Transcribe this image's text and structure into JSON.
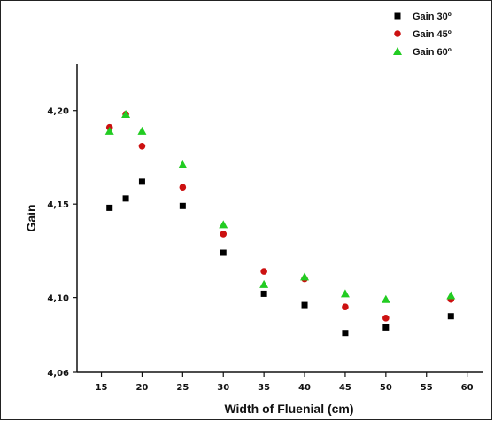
{
  "chart_data": {
    "type": "scatter",
    "xlabel": "Width of Fluenial (cm)",
    "ylabel": "Gain",
    "xlim": [
      12,
      62
    ],
    "ylim": [
      4.06,
      4.225
    ],
    "xticks": [
      15,
      20,
      25,
      30,
      35,
      40,
      45,
      50,
      55,
      60
    ],
    "xtick_labels": [
      "15",
      "20",
      "25",
      "30",
      "35",
      "40",
      "45",
      "50",
      "55",
      "60"
    ],
    "yticks": [
      4.06,
      4.1,
      4.15,
      4.2
    ],
    "ytick_labels": [
      "4,06",
      "4,10",
      "4,15",
      "4,20"
    ],
    "grid": false,
    "legend_position": "top-right",
    "series": [
      {
        "name": "Gain 30º",
        "marker": "square",
        "color": "#000000",
        "points": [
          [
            16,
            4.148
          ],
          [
            18,
            4.153
          ],
          [
            20,
            4.162
          ],
          [
            25,
            4.149
          ],
          [
            30,
            4.124
          ],
          [
            35,
            4.102
          ],
          [
            40,
            4.096
          ],
          [
            45,
            4.081
          ],
          [
            50,
            4.084
          ],
          [
            58,
            4.09
          ]
        ]
      },
      {
        "name": "Gain 45º",
        "marker": "circle",
        "color": "#cc1111",
        "points": [
          [
            16,
            4.191
          ],
          [
            18,
            4.198
          ],
          [
            20,
            4.181
          ],
          [
            25,
            4.159
          ],
          [
            30,
            4.134
          ],
          [
            35,
            4.114
          ],
          [
            40,
            4.11
          ],
          [
            45,
            4.095
          ],
          [
            50,
            4.089
          ],
          [
            58,
            4.099
          ]
        ]
      },
      {
        "name": "Gain 60º",
        "marker": "triangle",
        "color": "#22cc22",
        "points": [
          [
            16,
            4.189
          ],
          [
            18,
            4.198
          ],
          [
            20,
            4.189
          ],
          [
            25,
            4.171
          ],
          [
            30,
            4.139
          ],
          [
            35,
            4.107
          ],
          [
            40,
            4.111
          ],
          [
            45,
            4.102
          ],
          [
            50,
            4.099
          ],
          [
            58,
            4.101
          ]
        ]
      }
    ]
  }
}
